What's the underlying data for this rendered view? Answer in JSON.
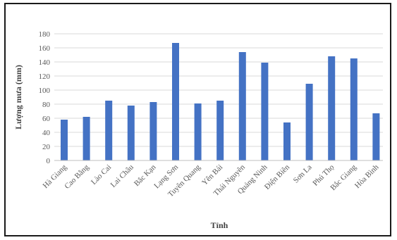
{
  "chart_data": {
    "type": "bar",
    "title": "",
    "xlabel": "Tỉnh",
    "ylabel": "Lượng mưa (mm)",
    "ylim": [
      0,
      180
    ],
    "yticks": [
      0,
      20,
      40,
      60,
      80,
      100,
      120,
      140,
      160,
      180
    ],
    "grid": true,
    "legend": "none",
    "bar_color": "#4472C4",
    "categories": [
      "Hà Giang",
      "Cao Bằng",
      "Lào Cai",
      "Lai Châu",
      "Bắc Kạn",
      "Lạng Sơn",
      "Tuyên Quang",
      "Yên Bái",
      "Thái Nguyên",
      "Quảng Ninh",
      "Điện Biên",
      "Sơn La",
      "Phú Thọ",
      "Bắc Giang",
      "Hòa Bình"
    ],
    "values": [
      58,
      62,
      85,
      78,
      83,
      167,
      81,
      85,
      154,
      139,
      54,
      109,
      148,
      145,
      67
    ]
  }
}
